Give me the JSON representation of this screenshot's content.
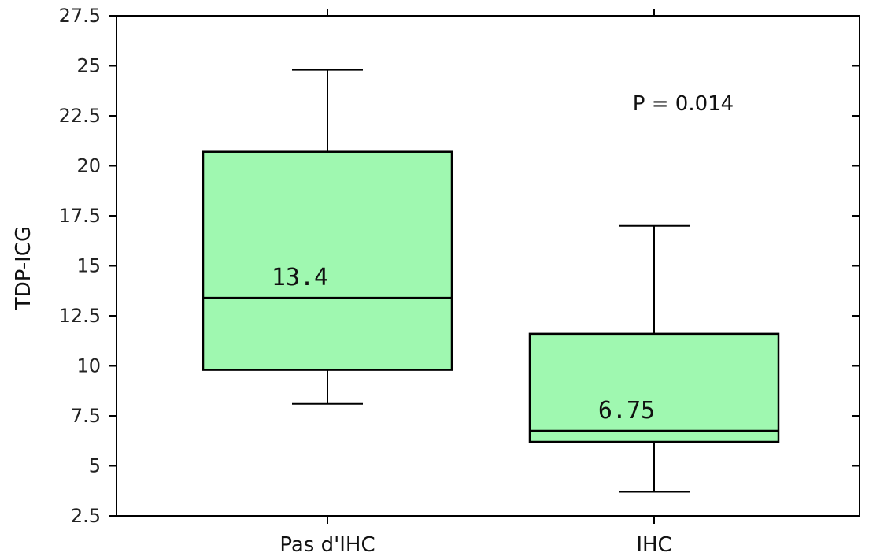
{
  "chart_data": {
    "type": "box",
    "ylabel": "TDP-ICG",
    "ylim": [
      2.5,
      27.5
    ],
    "yticks": [
      2.5,
      5,
      7.5,
      10,
      12.5,
      15,
      17.5,
      20,
      22.5,
      25,
      27.5
    ],
    "ytick_labels": [
      "2.5",
      "5",
      "7.5",
      "10",
      "12.5",
      "15",
      "17.5",
      "20",
      "22.5",
      "25",
      "27.5"
    ],
    "categories": [
      "Pas d'IHC",
      "IHC"
    ],
    "boxes": [
      {
        "category": "Pas d'IHC",
        "whisker_low": 8.1,
        "q1": 9.8,
        "median": 13.4,
        "q3": 20.7,
        "whisker_high": 24.8,
        "median_label": "13.4"
      },
      {
        "category": "IHC",
        "whisker_low": 3.7,
        "q1": 6.2,
        "median": 6.75,
        "q3": 11.6,
        "whisker_high": 17.0,
        "median_label": "6.75"
      }
    ],
    "annotation": "P = 0.014",
    "box_color": "#9ff8b0"
  }
}
